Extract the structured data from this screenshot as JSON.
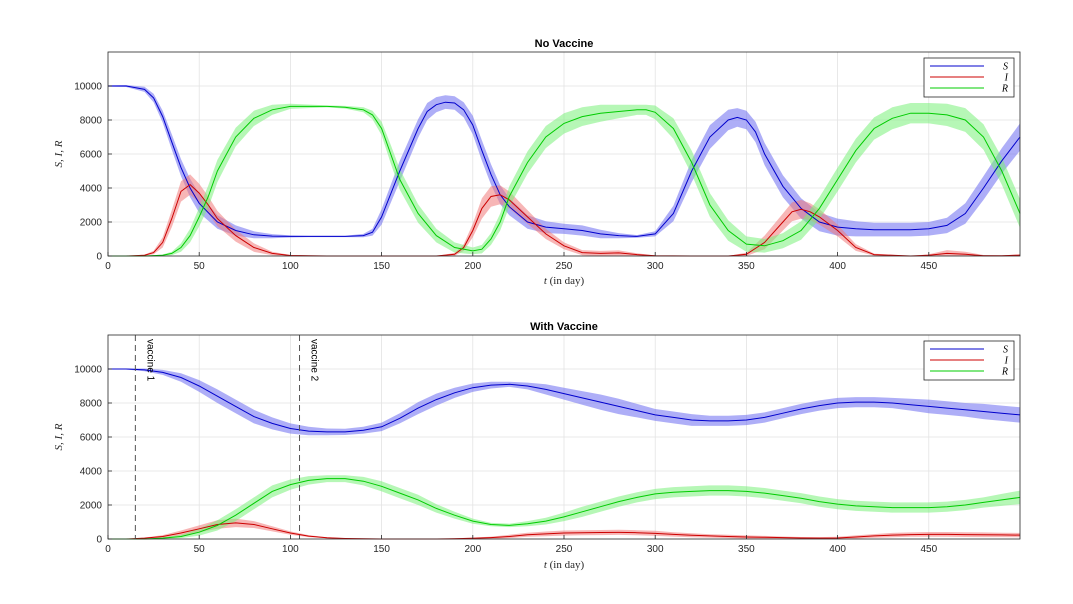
{
  "chart_data": [
    {
      "type": "line",
      "title": "No Vaccine",
      "xlabel_var": "t",
      "xlabel_rest": " (in day)",
      "ylabel": "S, I, R",
      "xlim": [
        0,
        500
      ],
      "ylim": [
        0,
        12000
      ],
      "xticks": [
        0,
        50,
        100,
        150,
        200,
        250,
        300,
        350,
        400,
        450
      ],
      "yticks": [
        0,
        2000,
        4000,
        6000,
        8000,
        10000
      ],
      "grid": true,
      "legend_position": "top-right",
      "series": [
        {
          "name": "S",
          "color": "#0000cc",
          "band_color": "#6b6bf0",
          "x": [
            0,
            10,
            20,
            25,
            30,
            35,
            40,
            45,
            50,
            60,
            70,
            80,
            90,
            100,
            110,
            120,
            130,
            140,
            145,
            150,
            160,
            170,
            175,
            180,
            185,
            190,
            195,
            200,
            205,
            210,
            215,
            220,
            230,
            240,
            250,
            260,
            270,
            280,
            290,
            300,
            310,
            320,
            330,
            340,
            345,
            350,
            355,
            360,
            370,
            380,
            390,
            400,
            410,
            420,
            430,
            440,
            450,
            460,
            470,
            480,
            490,
            500
          ],
          "y": [
            10000,
            10000,
            9800,
            9300,
            8200,
            6700,
            5200,
            4000,
            3100,
            2000,
            1500,
            1250,
            1170,
            1150,
            1150,
            1150,
            1150,
            1200,
            1400,
            2300,
            5000,
            7500,
            8500,
            8900,
            9050,
            9000,
            8600,
            7700,
            6200,
            4800,
            3600,
            2900,
            2000,
            1700,
            1600,
            1500,
            1300,
            1200,
            1150,
            1300,
            2500,
            5000,
            7000,
            8000,
            8150,
            8000,
            7300,
            6000,
            4100,
            2800,
            2000,
            1700,
            1600,
            1550,
            1550,
            1550,
            1600,
            1800,
            2500,
            4000,
            5600,
            7000
          ],
          "band": [
            40,
            60,
            150,
            250,
            350,
            450,
            500,
            550,
            550,
            400,
            300,
            200,
            120,
            60,
            40,
            40,
            40,
            100,
            200,
            450,
            600,
            550,
            500,
            450,
            400,
            400,
            450,
            550,
            600,
            600,
            550,
            500,
            400,
            350,
            300,
            300,
            250,
            150,
            80,
            150,
            450,
            650,
            700,
            600,
            550,
            550,
            600,
            650,
            650,
            600,
            550,
            500,
            450,
            400,
            400,
            400,
            400,
            450,
            600,
            700,
            750,
            800
          ]
        },
        {
          "name": "I",
          "color": "#cc0000",
          "band_color": "#f07a7a",
          "x": [
            0,
            10,
            20,
            25,
            30,
            35,
            40,
            45,
            50,
            55,
            60,
            70,
            80,
            90,
            100,
            120,
            140,
            160,
            180,
            190,
            195,
            200,
            205,
            210,
            215,
            220,
            230,
            240,
            250,
            260,
            270,
            280,
            290,
            300,
            320,
            340,
            350,
            360,
            370,
            375,
            380,
            385,
            390,
            400,
            410,
            420,
            440,
            450,
            460,
            470,
            480,
            490,
            500
          ],
          "y": [
            0,
            0,
            50,
            200,
            800,
            2200,
            3800,
            4200,
            3700,
            3000,
            2200,
            1200,
            500,
            150,
            30,
            0,
            0,
            0,
            0,
            100,
            500,
            1500,
            2800,
            3500,
            3600,
            3300,
            2300,
            1300,
            600,
            200,
            150,
            180,
            80,
            10,
            0,
            0,
            100,
            800,
            2000,
            2600,
            2750,
            2600,
            2300,
            1500,
            500,
            80,
            0,
            50,
            150,
            100,
            20,
            10,
            50
          ],
          "band": [
            0,
            0,
            30,
            100,
            300,
            500,
            600,
            600,
            550,
            500,
            450,
            350,
            250,
            100,
            30,
            0,
            0,
            0,
            0,
            80,
            200,
            400,
            600,
            600,
            550,
            500,
            400,
            300,
            200,
            150,
            150,
            150,
            80,
            20,
            0,
            0,
            100,
            400,
            500,
            550,
            550,
            500,
            450,
            350,
            200,
            60,
            0,
            50,
            200,
            150,
            40,
            20,
            60
          ]
        },
        {
          "name": "R",
          "color": "#00cc00",
          "band_color": "#7af07a",
          "x": [
            0,
            20,
            30,
            35,
            40,
            45,
            50,
            55,
            60,
            70,
            80,
            90,
            100,
            120,
            130,
            140,
            145,
            150,
            155,
            160,
            170,
            180,
            190,
            200,
            205,
            210,
            215,
            220,
            230,
            240,
            250,
            260,
            270,
            280,
            290,
            295,
            300,
            310,
            320,
            330,
            340,
            350,
            360,
            370,
            380,
            390,
            400,
            410,
            420,
            430,
            440,
            450,
            460,
            470,
            480,
            490,
            500
          ],
          "y": [
            0,
            0,
            50,
            150,
            500,
            1200,
            2300,
            3500,
            5000,
            7000,
            8100,
            8600,
            8800,
            8800,
            8750,
            8600,
            8300,
            7500,
            6000,
            4500,
            2500,
            1200,
            500,
            300,
            400,
            1000,
            2000,
            3500,
            5500,
            7000,
            7800,
            8200,
            8400,
            8500,
            8600,
            8600,
            8450,
            7500,
            5500,
            3000,
            1500,
            700,
            600,
            900,
            1500,
            2800,
            4500,
            6200,
            7500,
            8100,
            8400,
            8400,
            8300,
            8000,
            7000,
            5000,
            2500
          ],
          "band": [
            0,
            0,
            40,
            100,
            250,
            400,
            550,
            650,
            650,
            550,
            450,
            300,
            150,
            60,
            80,
            150,
            250,
            400,
            550,
            600,
            550,
            400,
            300,
            200,
            250,
            350,
            500,
            600,
            650,
            650,
            600,
            550,
            500,
            400,
            300,
            300,
            400,
            600,
            700,
            700,
            600,
            450,
            400,
            450,
            550,
            650,
            700,
            700,
            650,
            650,
            600,
            600,
            650,
            700,
            750,
            800,
            850
          ]
        }
      ],
      "annotations": []
    },
    {
      "type": "line",
      "title": "With Vaccine",
      "xlabel_var": "t",
      "xlabel_rest": " (in day)",
      "ylabel": "S, I, R",
      "xlim": [
        0,
        500
      ],
      "ylim": [
        0,
        12000
      ],
      "xticks": [
        0,
        50,
        100,
        150,
        200,
        250,
        300,
        350,
        400,
        450
      ],
      "yticks": [
        0,
        2000,
        4000,
        6000,
        8000,
        10000
      ],
      "grid": true,
      "legend_position": "top-right",
      "series": [
        {
          "name": "S",
          "color": "#0000cc",
          "band_color": "#6b6bf0",
          "x": [
            0,
            10,
            20,
            30,
            40,
            50,
            60,
            70,
            80,
            90,
            100,
            110,
            120,
            130,
            140,
            150,
            160,
            170,
            180,
            190,
            200,
            210,
            220,
            230,
            240,
            250,
            260,
            270,
            280,
            290,
            300,
            310,
            320,
            330,
            340,
            350,
            360,
            370,
            380,
            390,
            400,
            410,
            420,
            430,
            440,
            450,
            460,
            470,
            480,
            490,
            500
          ],
          "y": [
            10000,
            10000,
            9950,
            9800,
            9500,
            9000,
            8400,
            7800,
            7200,
            6800,
            6500,
            6350,
            6300,
            6300,
            6400,
            6600,
            7100,
            7700,
            8200,
            8600,
            8900,
            9050,
            9100,
            9000,
            8800,
            8550,
            8300,
            8050,
            7800,
            7550,
            7300,
            7150,
            7000,
            6950,
            6950,
            7000,
            7150,
            7400,
            7650,
            7850,
            8000,
            8050,
            8050,
            8000,
            7900,
            7800,
            7700,
            7600,
            7500,
            7400,
            7300
          ],
          "band": [
            20,
            30,
            80,
            150,
            250,
            350,
            400,
            400,
            400,
            350,
            300,
            250,
            200,
            180,
            200,
            250,
            300,
            350,
            350,
            300,
            250,
            200,
            150,
            200,
            300,
            350,
            400,
            450,
            450,
            400,
            350,
            350,
            350,
            300,
            300,
            300,
            300,
            300,
            300,
            300,
            300,
            300,
            300,
            300,
            350,
            400,
            400,
            400,
            450,
            450,
            450
          ]
        },
        {
          "name": "I",
          "color": "#cc0000",
          "band_color": "#f07a7a",
          "x": [
            0,
            10,
            20,
            30,
            40,
            50,
            60,
            70,
            80,
            90,
            100,
            110,
            120,
            130,
            140,
            150,
            160,
            170,
            180,
            190,
            200,
            210,
            220,
            230,
            240,
            250,
            260,
            270,
            280,
            290,
            300,
            310,
            320,
            330,
            340,
            350,
            360,
            370,
            380,
            390,
            400,
            410,
            420,
            430,
            440,
            450,
            460,
            470,
            480,
            490,
            500
          ],
          "y": [
            0,
            0,
            50,
            150,
            350,
            600,
            850,
            950,
            850,
            600,
            350,
            170,
            70,
            30,
            10,
            0,
            0,
            0,
            0,
            20,
            40,
            80,
            150,
            250,
            300,
            350,
            370,
            380,
            390,
            370,
            330,
            270,
            220,
            180,
            150,
            120,
            100,
            80,
            60,
            50,
            60,
            120,
            180,
            230,
            260,
            270,
            270,
            260,
            250,
            240,
            230
          ],
          "band": [
            0,
            0,
            30,
            80,
            150,
            200,
            250,
            250,
            200,
            150,
            100,
            60,
            30,
            10,
            0,
            0,
            0,
            0,
            0,
            20,
            40,
            60,
            100,
            120,
            140,
            150,
            150,
            150,
            150,
            150,
            150,
            130,
            120,
            100,
            100,
            90,
            80,
            70,
            60,
            60,
            70,
            90,
            110,
            130,
            130,
            140,
            140,
            140,
            140,
            130,
            130
          ]
        },
        {
          "name": "R",
          "color": "#00cc00",
          "band_color": "#7af07a",
          "x": [
            0,
            10,
            20,
            30,
            40,
            50,
            60,
            70,
            80,
            90,
            100,
            110,
            120,
            130,
            140,
            150,
            160,
            170,
            180,
            190,
            200,
            210,
            220,
            230,
            240,
            250,
            260,
            270,
            280,
            290,
            300,
            310,
            320,
            330,
            340,
            350,
            360,
            370,
            380,
            390,
            400,
            410,
            420,
            430,
            440,
            450,
            460,
            470,
            480,
            490,
            500
          ],
          "y": [
            0,
            0,
            0,
            50,
            150,
            400,
            800,
            1400,
            2100,
            2800,
            3200,
            3450,
            3550,
            3550,
            3400,
            3100,
            2700,
            2300,
            1800,
            1400,
            1050,
            850,
            800,
            900,
            1050,
            1300,
            1600,
            1900,
            2200,
            2450,
            2650,
            2750,
            2800,
            2850,
            2850,
            2800,
            2700,
            2550,
            2400,
            2200,
            2050,
            1950,
            1900,
            1850,
            1850,
            1850,
            1900,
            2000,
            2150,
            2300,
            2450
          ],
          "band": [
            0,
            0,
            0,
            40,
            100,
            200,
            300,
            350,
            350,
            350,
            300,
            250,
            200,
            200,
            250,
            300,
            300,
            300,
            250,
            200,
            150,
            100,
            100,
            150,
            200,
            250,
            300,
            300,
            300,
            300,
            300,
            300,
            300,
            300,
            300,
            300,
            300,
            300,
            300,
            300,
            300,
            300,
            300,
            300,
            300,
            300,
            300,
            300,
            300,
            350,
            400
          ]
        }
      ],
      "annotations": [
        {
          "x": 15,
          "label": "vaccine 1"
        },
        {
          "x": 105,
          "label": "vaccine 2"
        }
      ]
    }
  ]
}
